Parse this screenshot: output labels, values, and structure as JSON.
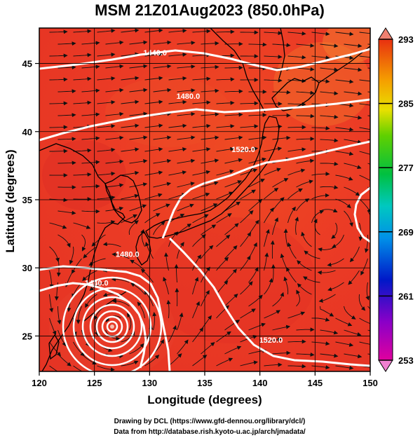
{
  "chart_data": {
    "type": "heatmap",
    "title": "MSM 21Z01Aug2023 (850.0hPa)",
    "xlabel": "Longitude (degrees)",
    "ylabel": "Latitude  (degrees)",
    "xlim": [
      120,
      150
    ],
    "ylim": [
      22.4,
      47.6
    ],
    "x_ticks": [
      "120",
      "125",
      "130",
      "135",
      "140",
      "145",
      "150"
    ],
    "y_ticks": [
      "25",
      "30",
      "35",
      "40",
      "45"
    ],
    "grid": true,
    "colorbar": {
      "min": 253,
      "max": 293,
      "labels": [
        "293",
        "285",
        "277",
        "269",
        "261",
        "253"
      ],
      "tick_values": [
        293,
        285,
        277,
        269,
        261,
        253
      ]
    },
    "contours": [
      {
        "label": "1440.0",
        "level": 1440
      },
      {
        "label": "1480.0",
        "level": 1480
      },
      {
        "label": "1520.0",
        "level": 1520
      }
    ],
    "contour_points": [
      {
        "label": "1440.0",
        "lon": 130.5,
        "lat": 45.6
      },
      {
        "label": "1480.0",
        "lon": 133.5,
        "lat": 42.4
      },
      {
        "label": "1520.0",
        "lon": 138.5,
        "lat": 38.5
      },
      {
        "label": "1480.0",
        "lon": 128.0,
        "lat": 30.8
      },
      {
        "label": "1440.0",
        "lon": 125.2,
        "lat": 28.7
      },
      {
        "label": "1520.0",
        "lon": 141.0,
        "lat": 24.5
      }
    ],
    "typhoon_center": {
      "lon": 127.0,
      "lat": 25.8
    }
  },
  "credits": {
    "line1": "Drawing by DCL (https://www.gfd-dennou.org/library/dcl/)",
    "line2": "Data from http://database.rish.kyoto-u.ac.jp/arch/jmadata/"
  }
}
